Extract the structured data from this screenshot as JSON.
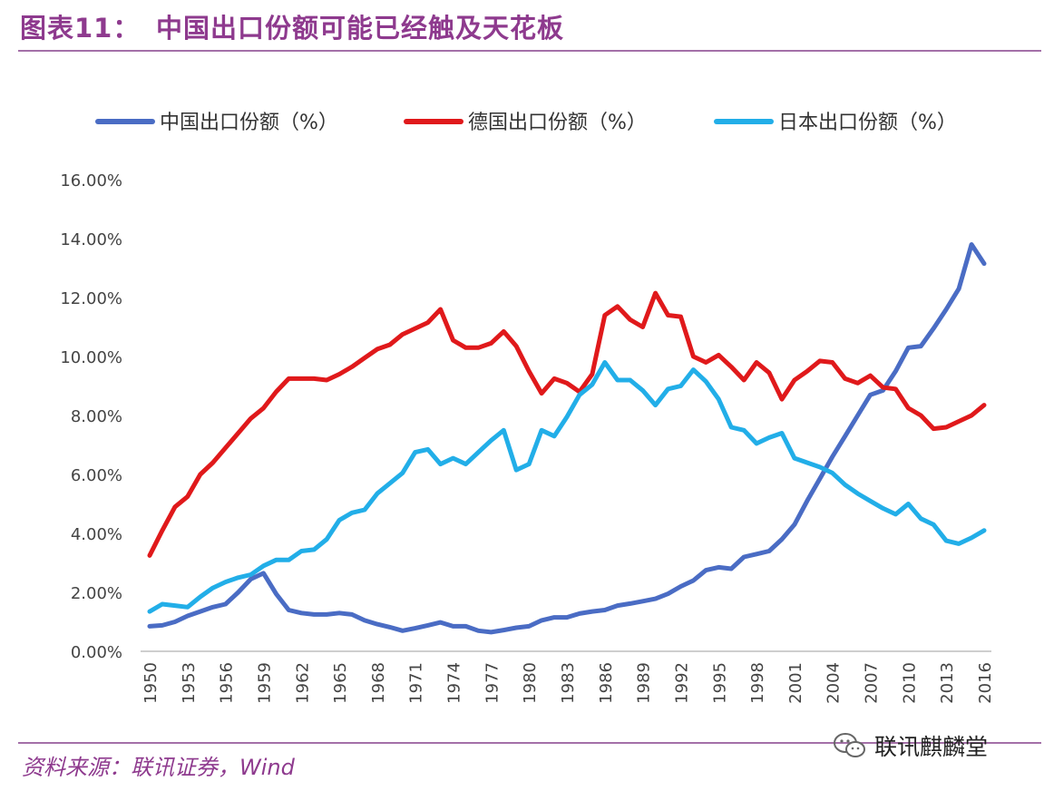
{
  "header": {
    "figure_label": "图表11：",
    "figure_title": "中国出口份额可能已经触及天花板"
  },
  "footer": {
    "source": "资料来源：联讯证券，Wind",
    "watermark": "联讯麒麟堂",
    "watermark_icon": "wechat-logo-icon"
  },
  "colors": {
    "brand": "#8e3a8e",
    "china": "#4a6cc4",
    "germany": "#e0191b",
    "japan": "#22aee8"
  },
  "chart_data": {
    "type": "line",
    "title": "",
    "xlabel": "",
    "ylabel": "",
    "ylim": [
      0,
      16
    ],
    "y_ticks": [
      "0.00%",
      "2.00%",
      "4.00%",
      "6.00%",
      "8.00%",
      "10.00%",
      "12.00%",
      "14.00%",
      "16.00%"
    ],
    "x_ticks": [
      "1950",
      "1953",
      "1956",
      "1959",
      "1962",
      "1965",
      "1968",
      "1971",
      "1974",
      "1977",
      "1980",
      "1983",
      "1986",
      "1989",
      "1992",
      "1995",
      "1998",
      "2001",
      "2004",
      "2007",
      "2010",
      "2013",
      "2016"
    ],
    "legend_position": "top",
    "grid": false,
    "x": [
      1950,
      1951,
      1952,
      1953,
      1954,
      1955,
      1956,
      1957,
      1958,
      1959,
      1960,
      1961,
      1962,
      1963,
      1964,
      1965,
      1966,
      1967,
      1968,
      1969,
      1970,
      1971,
      1972,
      1973,
      1974,
      1975,
      1976,
      1977,
      1978,
      1979,
      1980,
      1981,
      1982,
      1983,
      1984,
      1985,
      1986,
      1987,
      1988,
      1989,
      1990,
      1991,
      1992,
      1993,
      1994,
      1995,
      1996,
      1997,
      1998,
      1999,
      2000,
      2001,
      2002,
      2003,
      2004,
      2005,
      2006,
      2007,
      2008,
      2009,
      2010,
      2011,
      2012,
      2013,
      2014,
      2015,
      2016
    ],
    "series": [
      {
        "name": "中国出口份额（%）",
        "color": "#4a6cc4",
        "values": [
          0.85,
          0.88,
          1.0,
          1.2,
          1.35,
          1.5,
          1.6,
          2.0,
          2.45,
          2.65,
          1.95,
          1.4,
          1.3,
          1.25,
          1.25,
          1.3,
          1.25,
          1.05,
          0.92,
          0.82,
          0.7,
          0.78,
          0.88,
          0.98,
          0.85,
          0.85,
          0.7,
          0.65,
          0.72,
          0.8,
          0.85,
          1.05,
          1.15,
          1.15,
          1.28,
          1.35,
          1.4,
          1.55,
          1.62,
          1.7,
          1.78,
          1.95,
          2.2,
          2.4,
          2.75,
          2.85,
          2.8,
          3.2,
          3.3,
          3.4,
          3.8,
          4.3,
          5.1,
          5.85,
          6.6,
          7.3,
          8.0,
          8.7,
          8.85,
          9.5,
          10.3,
          10.35,
          10.95,
          11.6,
          12.3,
          13.8,
          13.15
        ]
      },
      {
        "name": "德国出口份额（%）",
        "color": "#e0191b",
        "values": [
          3.25,
          4.1,
          4.9,
          5.25,
          6.0,
          6.4,
          6.9,
          7.4,
          7.9,
          8.25,
          8.8,
          9.25,
          9.25,
          9.25,
          9.2,
          9.4,
          9.65,
          9.95,
          10.25,
          10.4,
          10.75,
          10.95,
          11.15,
          11.6,
          10.55,
          10.3,
          10.3,
          10.45,
          10.85,
          10.35,
          9.5,
          8.75,
          9.25,
          9.1,
          8.8,
          9.4,
          11.4,
          11.7,
          11.25,
          11.0,
          12.15,
          11.4,
          11.35,
          10.0,
          9.8,
          10.05,
          9.65,
          9.2,
          9.8,
          9.45,
          8.55,
          9.2,
          9.5,
          9.85,
          9.8,
          9.25,
          9.1,
          9.35,
          8.95,
          8.9,
          8.25,
          8.0,
          7.55,
          7.6,
          7.8,
          8.0,
          8.35
        ]
      },
      {
        "name": "日本出口份额（%）",
        "color": "#22aee8",
        "values": [
          1.35,
          1.6,
          1.55,
          1.5,
          1.85,
          2.15,
          2.35,
          2.5,
          2.6,
          2.9,
          3.1,
          3.1,
          3.4,
          3.45,
          3.8,
          4.45,
          4.7,
          4.8,
          5.35,
          5.7,
          6.05,
          6.75,
          6.85,
          6.35,
          6.55,
          6.35,
          6.75,
          7.15,
          7.5,
          6.15,
          6.35,
          7.5,
          7.3,
          7.95,
          8.7,
          9.05,
          9.8,
          9.2,
          9.2,
          8.85,
          8.35,
          8.9,
          9.0,
          9.55,
          9.15,
          8.55,
          7.6,
          7.5,
          7.05,
          7.25,
          7.4,
          6.55,
          6.4,
          6.25,
          6.05,
          5.65,
          5.35,
          5.1,
          4.85,
          4.65,
          5.0,
          4.5,
          4.3,
          3.75,
          3.65,
          3.85,
          4.1
        ]
      }
    ]
  }
}
